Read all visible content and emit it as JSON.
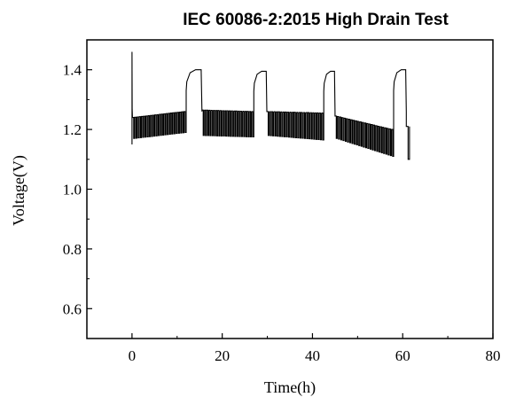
{
  "chart_data": {
    "type": "line",
    "title": "IEC 60086-2:2015 High Drain Test",
    "xlabel": "Time(h)",
    "ylabel": "Voltage(V)",
    "xlim": [
      -10,
      80
    ],
    "ylim": [
      0.5,
      1.5
    ],
    "x_ticks": [
      0,
      20,
      40,
      60,
      80
    ],
    "y_ticks": [
      0.6,
      0.8,
      1.0,
      1.2,
      1.4
    ],
    "x_tick_labels": [
      "0",
      "20",
      "40",
      "60",
      "80"
    ],
    "y_tick_labels": [
      "0.6",
      "0.8",
      "1.0",
      "1.2",
      "1.4"
    ],
    "grid": false,
    "legend": "none",
    "line_color": "#000000",
    "series": [
      {
        "initial_open_circuit_voltage": 1.46,
        "pulse_period_h": 0.5,
        "discharge_segments": [
          {
            "start": 0.1,
            "end": 12.0,
            "upper_start": 1.24,
            "upper_end": 1.26,
            "lower_start": 1.17,
            "lower_end": 1.19
          },
          {
            "start": 15.5,
            "end": 27.0,
            "upper_start": 1.265,
            "upper_end": 1.26,
            "lower_start": 1.18,
            "lower_end": 1.175
          },
          {
            "start": 29.9,
            "end": 42.5,
            "upper_start": 1.26,
            "upper_end": 1.255,
            "lower_start": 1.18,
            "lower_end": 1.165
          },
          {
            "start": 45.0,
            "end": 58.0,
            "upper_start": 1.245,
            "upper_end": 1.2,
            "lower_start": 1.17,
            "lower_end": 1.11
          },
          {
            "start": 60.8,
            "end": 61.5,
            "upper_start": 1.21,
            "upper_end": 1.21,
            "lower_start": 1.1,
            "lower_end": 1.12
          }
        ],
        "rest_segments": [
          {
            "start": 12.0,
            "end": 15.5,
            "peak": 1.4
          },
          {
            "start": 27.0,
            "end": 29.9,
            "peak": 1.395
          },
          {
            "start": 42.5,
            "end": 45.0,
            "peak": 1.395
          },
          {
            "start": 58.0,
            "end": 60.8,
            "peak": 1.4
          }
        ]
      }
    ]
  }
}
